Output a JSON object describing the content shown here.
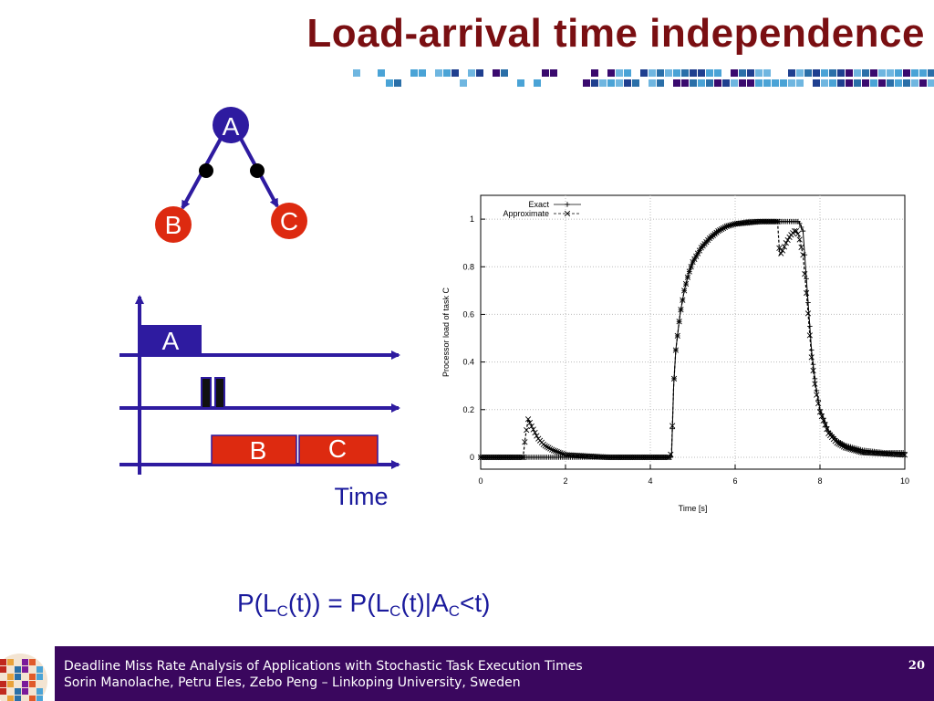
{
  "title": "Load-arrival time independence",
  "colors": {
    "title": "#7a0f12",
    "node_a": "#2e1ba0",
    "node_bc": "#dd2a10",
    "diagram_line": "#2e1ba0",
    "formula": "#1a1a9c",
    "footer_bg": "#3a075e"
  },
  "graph": {
    "nodes": [
      {
        "id": "A",
        "label": "A"
      },
      {
        "id": "B",
        "label": "B"
      },
      {
        "id": "C",
        "label": "C"
      }
    ]
  },
  "timeline": {
    "task_a": "A",
    "task_b": "B",
    "task_c": "C",
    "axis_label": "Time"
  },
  "chart_data": {
    "type": "line",
    "title": "",
    "xlabel": "Time [s]",
    "ylabel": "Processor load of task C",
    "xlim": [
      0,
      10
    ],
    "ylim": [
      -0.05,
      1.1
    ],
    "xticks": [
      0,
      2,
      4,
      6,
      8,
      10
    ],
    "yticks": [
      0,
      0.2,
      0.4,
      0.6,
      0.8,
      1
    ],
    "grid": true,
    "legend_position": "top-left",
    "series": [
      {
        "name": "Exact",
        "marker": "+",
        "x": [
          0,
          1.0,
          1.05,
          1.12,
          1.2,
          1.35,
          1.5,
          1.7,
          2.0,
          2.5,
          3.0,
          3.5,
          4.0,
          4.45,
          4.5,
          4.55,
          4.6,
          4.7,
          4.8,
          4.9,
          5.0,
          5.2,
          5.4,
          5.6,
          5.8,
          6.0,
          6.3,
          6.6,
          6.9,
          7.0,
          7.05,
          7.1,
          7.2,
          7.3,
          7.4,
          7.45,
          7.5,
          7.6,
          7.7,
          7.8,
          7.9,
          8.0,
          8.2,
          8.4,
          8.6,
          8.8,
          9.0,
          9.5,
          10.0
        ],
        "y": [
          0,
          0,
          0,
          0,
          0,
          0,
          0,
          0,
          0,
          0,
          0,
          0,
          0,
          0,
          0,
          0.3,
          0.45,
          0.6,
          0.7,
          0.77,
          0.82,
          0.88,
          0.92,
          0.95,
          0.97,
          0.98,
          0.99,
          0.99,
          0.99,
          0.99,
          0.99,
          0.99,
          0.99,
          0.99,
          0.99,
          0.99,
          0.99,
          0.95,
          0.7,
          0.45,
          0.3,
          0.2,
          0.11,
          0.07,
          0.05,
          0.04,
          0.03,
          0.02,
          0.02
        ]
      },
      {
        "name": "Approximate",
        "marker": "x",
        "x": [
          0,
          1.0,
          1.05,
          1.12,
          1.2,
          1.35,
          1.5,
          1.7,
          2.0,
          2.5,
          3.0,
          3.5,
          4.0,
          4.45,
          4.5,
          4.55,
          4.6,
          4.7,
          4.8,
          4.9,
          5.0,
          5.2,
          5.4,
          5.6,
          5.8,
          6.0,
          6.3,
          6.6,
          6.9,
          7.0,
          7.05,
          7.1,
          7.2,
          7.3,
          7.4,
          7.45,
          7.5,
          7.6,
          7.7,
          7.8,
          7.9,
          8.0,
          8.2,
          8.4,
          8.6,
          8.8,
          9.0,
          9.5,
          10.0
        ],
        "y": [
          0,
          0,
          0.08,
          0.16,
          0.13,
          0.08,
          0.05,
          0.03,
          0.01,
          0.005,
          0,
          0,
          0,
          0,
          0.02,
          0.3,
          0.45,
          0.6,
          0.7,
          0.77,
          0.82,
          0.88,
          0.92,
          0.95,
          0.97,
          0.98,
          0.985,
          0.99,
          0.99,
          0.99,
          0.85,
          0.86,
          0.9,
          0.93,
          0.95,
          0.95,
          0.93,
          0.85,
          0.65,
          0.42,
          0.28,
          0.19,
          0.1,
          0.06,
          0.04,
          0.03,
          0.02,
          0.015,
          0.01
        ]
      }
    ]
  },
  "formula": {
    "p1": "P(L",
    "s1": "C",
    "p2": "(t)) = P(L",
    "s2": "C",
    "p3": "(t)|A",
    "s3": "C",
    "p4": "<t)"
  },
  "footer": {
    "line1": "Deadline Miss Rate Analysis of Applications with Stochastic Task Execution Times",
    "line2": "Sorin Manolache, Petru Eles, Zebo Peng – Linkoping University, Sweden",
    "page_number": "20"
  }
}
